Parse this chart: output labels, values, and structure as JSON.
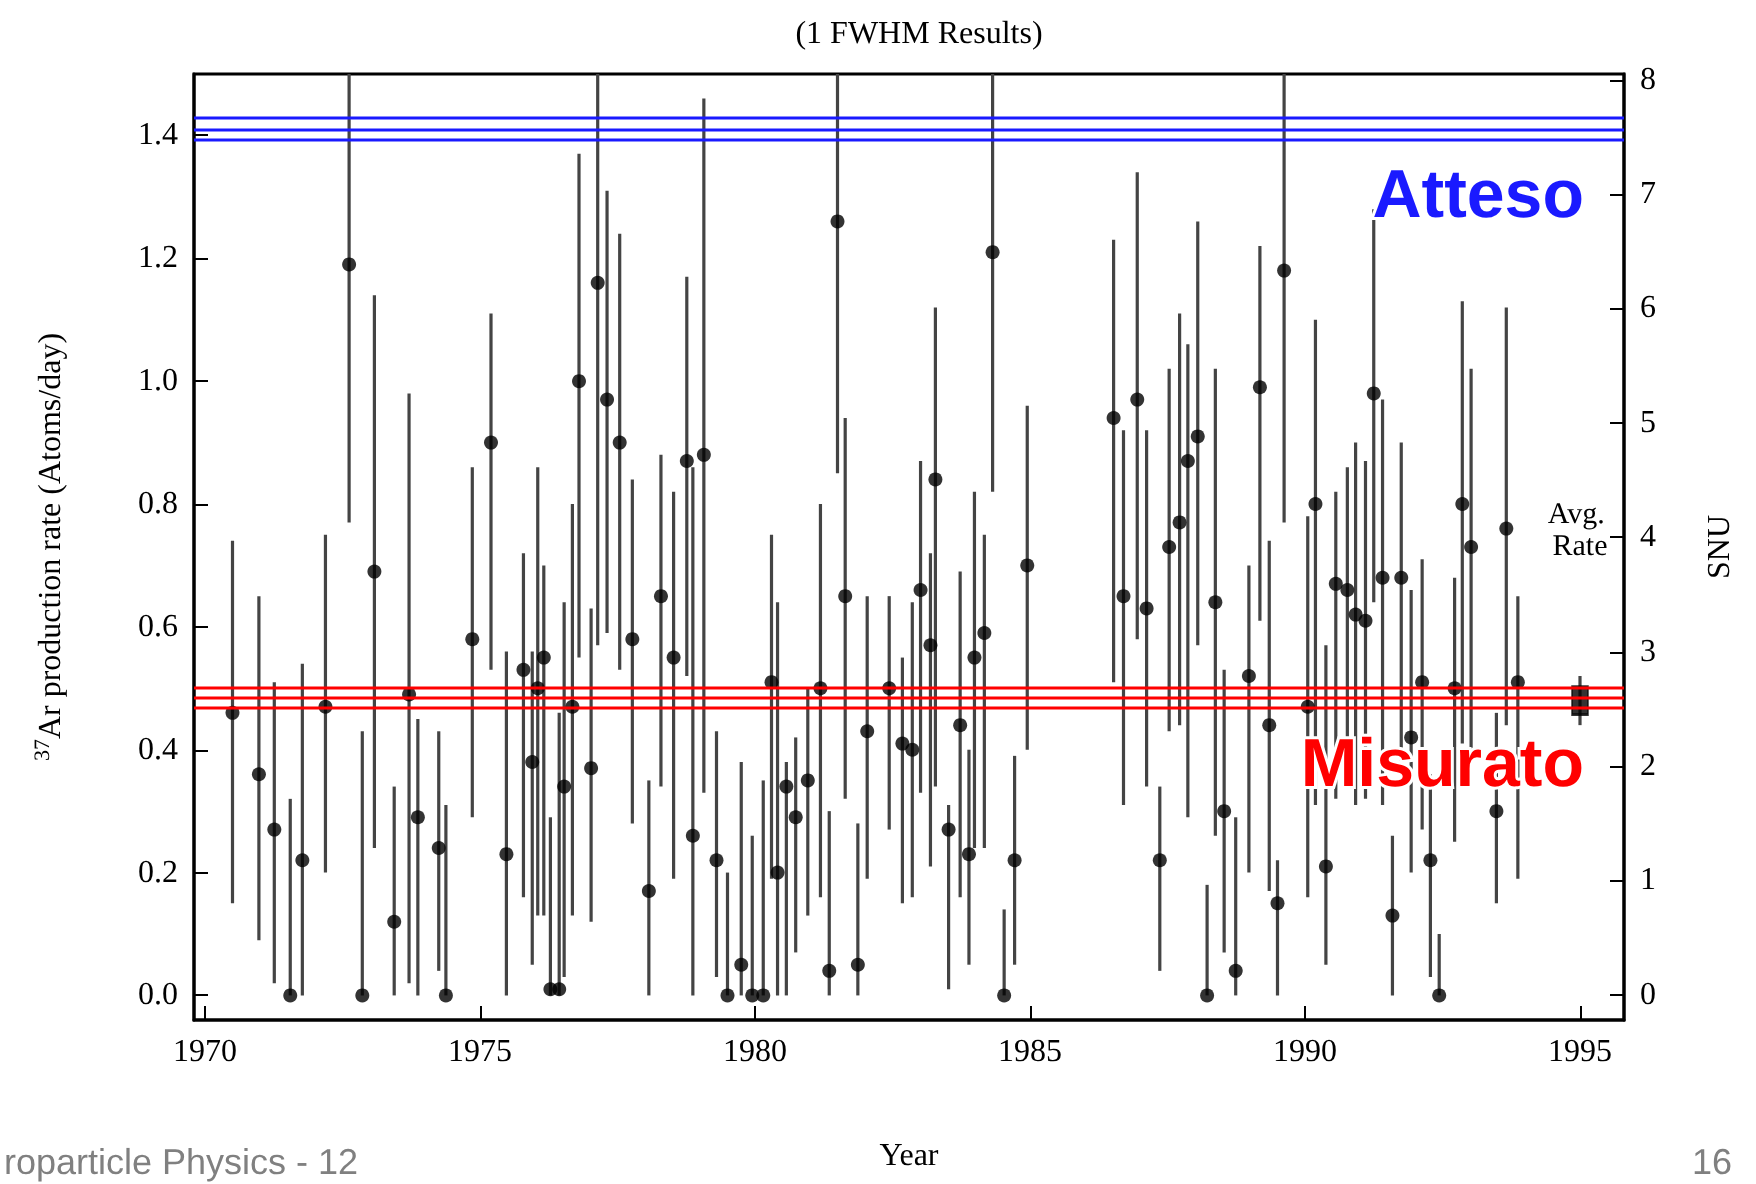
{
  "chart_data": {
    "type": "scatter",
    "title": "(1 FWHM Results)",
    "xlabel": "Year",
    "ylabel": "$^{37}$Ar production rate (Atoms/day)",
    "y2label": "SNU",
    "xlim": [
      1969.8,
      1995.8
    ],
    "xticks": [
      1970,
      1975,
      1980,
      1985,
      1990,
      1995
    ],
    "ylim": [
      -0.04,
      1.5
    ],
    "yticks": [
      {
        "value": 0,
        "label": "0.0"
      },
      0.2,
      0.4,
      0.6,
      0.8,
      {
        "value": 1,
        "label": "1.0"
      },
      1.2,
      1.4
    ],
    "y2lim": [
      -0.22,
      8.05
    ],
    "y2ticks": [
      0,
      1,
      2,
      3,
      4,
      5,
      6,
      7,
      8
    ],
    "grid": false,
    "marker": "circle",
    "series": [
      {
        "color": "#000000",
        "x": [
          1970.5,
          1970.98,
          1971.26,
          1971.55,
          1971.77,
          1972.19,
          1972.62,
          1972.86,
          1973.08,
          1973.44,
          1973.71,
          1973.87,
          1974.25,
          1974.38,
          1974.86,
          1975.2,
          1975.48,
          1975.79,
          1975.95,
          1976.05,
          1976.16,
          1976.28,
          1976.44,
          1976.53,
          1976.68,
          1976.8,
          1977.02,
          1977.14,
          1977.31,
          1977.54,
          1977.77,
          1978.07,
          1978.29,
          1978.52,
          1978.76,
          1978.87,
          1979.07,
          1979.3,
          1979.5,
          1979.75,
          1979.95,
          1980.15,
          1980.3,
          1980.41,
          1980.57,
          1980.74,
          1980.96,
          1981.19,
          1981.35,
          1981.5,
          1981.64,
          1981.87,
          1982.04,
          1982.44,
          1982.68,
          1982.86,
          1983.01,
          1983.19,
          1983.28,
          1983.52,
          1983.73,
          1983.89,
          1983.99,
          1984.17,
          1984.32,
          1984.53,
          1984.72,
          1984.95,
          1986.52,
          1986.7,
          1986.95,
          1987.12,
          1987.36,
          1987.53,
          1987.72,
          1987.87,
          1988.05,
          1988.22,
          1988.37,
          1988.53,
          1988.74,
          1988.98,
          1989.18,
          1989.35,
          1989.5,
          1989.62,
          1990.05,
          1990.19,
          1990.38,
          1990.56,
          1990.77,
          1990.92,
          1991.1,
          1991.25,
          1991.41,
          1991.59,
          1991.75,
          1991.93,
          1992.13,
          1992.28,
          1992.44,
          1992.72,
          1992.86,
          1993.02,
          1993.48,
          1993.66,
          1993.87
        ],
        "values": [
          0.46,
          0.36,
          0.27,
          0,
          0.22,
          0.47,
          1.19,
          0,
          0.69,
          0.12,
          0.49,
          0.29,
          0.24,
          0,
          0.58,
          0.9,
          0.23,
          0.53,
          0.38,
          0.5,
          0.55,
          0.01,
          0.01,
          0.34,
          0.47,
          1.0,
          0.37,
          1.16,
          0.97,
          0.9,
          0.58,
          0.17,
          0.65,
          0.55,
          0.87,
          0.26,
          0.88,
          0.22,
          0,
          0.05,
          0,
          0,
          0.51,
          0.2,
          0.34,
          0.29,
          0.35,
          0.5,
          0.04,
          1.26,
          0.65,
          0.05,
          0.43,
          0.5,
          0.41,
          0.4,
          0.66,
          0.57,
          0.84,
          0.27,
          0.44,
          0.23,
          0.55,
          0.59,
          1.21,
          0,
          0.22,
          0.7,
          0.94,
          0.65,
          0.97,
          0.63,
          0.22,
          0.73,
          0.77,
          0.87,
          0.91,
          0,
          0.64,
          0.3,
          0.04,
          0.52,
          0.99,
          0.44,
          0.15,
          1.18,
          0.47,
          0.8,
          0.21,
          0.67,
          0.66,
          0.62,
          0.61,
          0.98,
          0.68,
          0.13,
          0.68,
          0.42,
          0.51,
          0.22,
          0,
          0.5,
          0.8,
          0.73,
          0.3,
          0.76,
          0.51
        ],
        "errors": [
          [
            0.15,
            0.74
          ],
          [
            0.09,
            0.65
          ],
          [
            0.02,
            0.51
          ],
          [
            0,
            0.32
          ],
          [
            0,
            0.54
          ],
          [
            0.2,
            0.75
          ],
          [
            0.77,
            1.5
          ],
          [
            0,
            0.43
          ],
          [
            0.24,
            1.14
          ],
          [
            0,
            0.34
          ],
          [
            0.02,
            0.98
          ],
          [
            0,
            0.45
          ],
          [
            0.04,
            0.43
          ],
          [
            0,
            0.31
          ],
          [
            0.29,
            0.86
          ],
          [
            0.53,
            1.11
          ],
          [
            0,
            0.56
          ],
          [
            0.16,
            0.72
          ],
          [
            0.05,
            0.56
          ],
          [
            0.13,
            0.86
          ],
          [
            0.13,
            0.7
          ],
          [
            0,
            0.29
          ],
          [
            0,
            0.46
          ],
          [
            0.03,
            0.64
          ],
          [
            0.13,
            0.8
          ],
          [
            0.55,
            1.37
          ],
          [
            0.12,
            0.63
          ],
          [
            0.57,
            1.5
          ],
          [
            0.59,
            1.31
          ],
          [
            0.53,
            1.24
          ],
          [
            0.28,
            0.84
          ],
          [
            0,
            0.35
          ],
          [
            0.34,
            0.88
          ],
          [
            0.19,
            0.82
          ],
          [
            0.52,
            1.17
          ],
          [
            0,
            0.86
          ],
          [
            0.33,
            1.46
          ],
          [
            0.03,
            0.43
          ],
          [
            0,
            0.2
          ],
          [
            0,
            0.38
          ],
          [
            0,
            0.26
          ],
          [
            0,
            0.35
          ],
          [
            0.19,
            0.75
          ],
          [
            0,
            0.64
          ],
          [
            0,
            0.38
          ],
          [
            0.07,
            0.42
          ],
          [
            0.13,
            0.5
          ],
          [
            0.16,
            0.8
          ],
          [
            0,
            0.3
          ],
          [
            0.85,
            1.5
          ],
          [
            0.32,
            0.94
          ],
          [
            0,
            0.28
          ],
          [
            0.19,
            0.65
          ],
          [
            0.27,
            0.65
          ],
          [
            0.15,
            0.55
          ],
          [
            0.16,
            0.64
          ],
          [
            0.33,
            0.87
          ],
          [
            0.21,
            0.72
          ],
          [
            0.34,
            1.12
          ],
          [
            0.01,
            0.31
          ],
          [
            0.16,
            0.69
          ],
          [
            0.05,
            0.4
          ],
          [
            0.24,
            0.82
          ],
          [
            0.24,
            0.75
          ],
          [
            0.82,
            1.5
          ],
          [
            0,
            0.14
          ],
          [
            0.05,
            0.39
          ],
          [
            0.4,
            0.96
          ],
          [
            0.51,
            1.23
          ],
          [
            0.31,
            0.92
          ],
          [
            0.58,
            1.34
          ],
          [
            0.34,
            0.92
          ],
          [
            0.04,
            0.34
          ],
          [
            0.43,
            1.02
          ],
          [
            0.44,
            1.11
          ],
          [
            0.29,
            1.06
          ],
          [
            0.57,
            1.26
          ],
          [
            0,
            0.18
          ],
          [
            0.26,
            1.02
          ],
          [
            0.07,
            0.53
          ],
          [
            0,
            0.29
          ],
          [
            0.2,
            0.7
          ],
          [
            0.61,
            1.22
          ],
          [
            0.17,
            0.74
          ],
          [
            0,
            0.22
          ],
          [
            0.77,
            1.5
          ],
          [
            0.16,
            0.78
          ],
          [
            0.31,
            1.1
          ],
          [
            0.05,
            0.57
          ],
          [
            0.32,
            0.82
          ],
          [
            0.34,
            0.86
          ],
          [
            0.31,
            0.9
          ],
          [
            0.32,
            0.87
          ],
          [
            0.64,
            1.28
          ],
          [
            0.31,
            0.97
          ],
          [
            0,
            0.26
          ],
          [
            0.38,
            0.9
          ],
          [
            0.2,
            0.66
          ],
          [
            0.27,
            0.71
          ],
          [
            0.03,
            0.36
          ],
          [
            0,
            0.1
          ],
          [
            0.25,
            0.68
          ],
          [
            0.41,
            1.13
          ],
          [
            0.4,
            1.02
          ],
          [
            0.15,
            0.46
          ],
          [
            0.44,
            1.12
          ],
          [
            0.19,
            0.65
          ]
        ]
      },
      {
        "color": "#000000",
        "marker": "square",
        "x": [
          1995.0
        ],
        "values": [
          0.48
        ],
        "errors": [
          [
            0.44,
            0.52
          ]
        ]
      }
    ],
    "ref_lines": [
      {
        "axis": "y",
        "value": 1.43,
        "color": "#1a1aff"
      },
      {
        "axis": "y",
        "value": 1.41,
        "color": "#1a1aff",
        "label": "Atteso"
      },
      {
        "axis": "y",
        "value": 1.395,
        "color": "#1a1aff"
      },
      {
        "axis": "y",
        "value": 0.5,
        "color": "#ff0000"
      },
      {
        "axis": "y",
        "value": 0.485,
        "color": "#ff0000",
        "label": "Misurato"
      },
      {
        "axis": "y",
        "value": 0.47,
        "color": "#ff0000"
      }
    ],
    "annotations": [
      "Avg. Rate",
      "roparticle Physics - 12",
      "16"
    ]
  }
}
